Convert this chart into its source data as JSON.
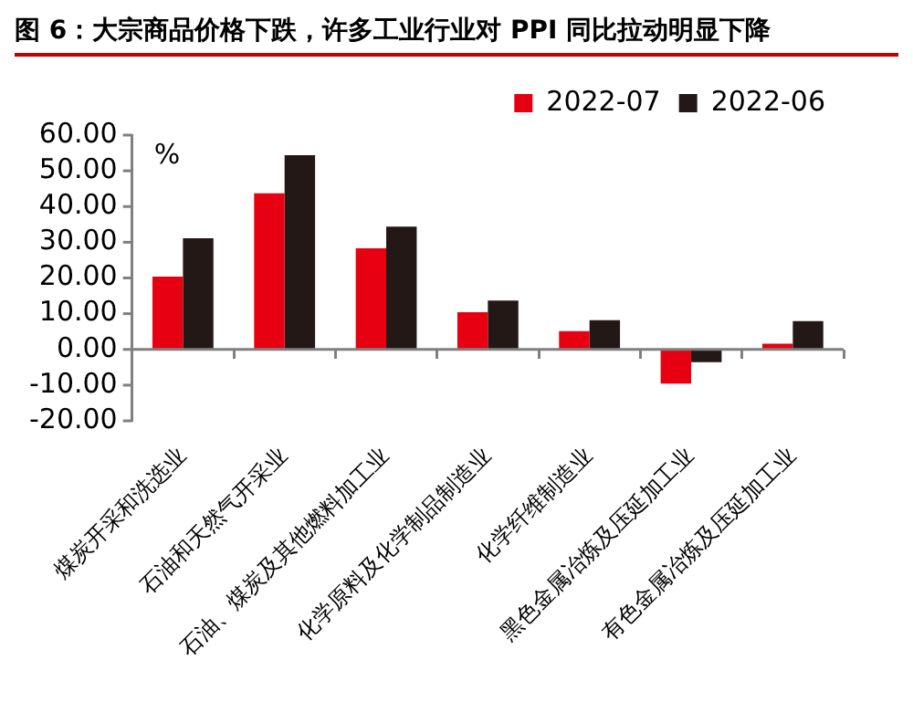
{
  "chart_data": {
    "type": "bar",
    "title": "图 6：大宗商品价格下跌，许多工业行业对 PPI 同比拉动明显下降",
    "categories": [
      "煤炭开采和洗选业",
      "石油和天然气开采业",
      "石油、煤炭及其他燃料加工业",
      "化学原料及化学制品制造业",
      "化学纤维制造业",
      "黑色金属冶炼及压延加工业",
      "有色金属冶炼及压延加工业"
    ],
    "series": [
      {
        "name": "2022-07",
        "color": "#e60012",
        "values": [
          20.4,
          43.7,
          28.3,
          10.4,
          5.1,
          -9.6,
          1.6
        ]
      },
      {
        "name": "2022-06",
        "color": "#231815",
        "values": [
          31.1,
          54.4,
          34.4,
          13.7,
          8.2,
          -3.6,
          7.9
        ]
      }
    ],
    "ylabel": "%",
    "ylim": [
      -20,
      60
    ],
    "yticks": [
      {
        "value": -20,
        "label": "-20.00"
      },
      {
        "value": -10,
        "label": "-10.00"
      },
      {
        "value": 0,
        "label": "0.00"
      },
      {
        "value": 10,
        "label": "10.00"
      },
      {
        "value": 20,
        "label": "20.00"
      },
      {
        "value": 30,
        "label": "30.00"
      },
      {
        "value": 40,
        "label": "40.00"
      },
      {
        "value": 50,
        "label": "50.00"
      },
      {
        "value": 60,
        "label": "60.00"
      }
    ],
    "ref_lines": [
      {
        "axis": "y",
        "value": 0,
        "color": "#808080"
      }
    ],
    "grid": false,
    "legend": "top right"
  }
}
